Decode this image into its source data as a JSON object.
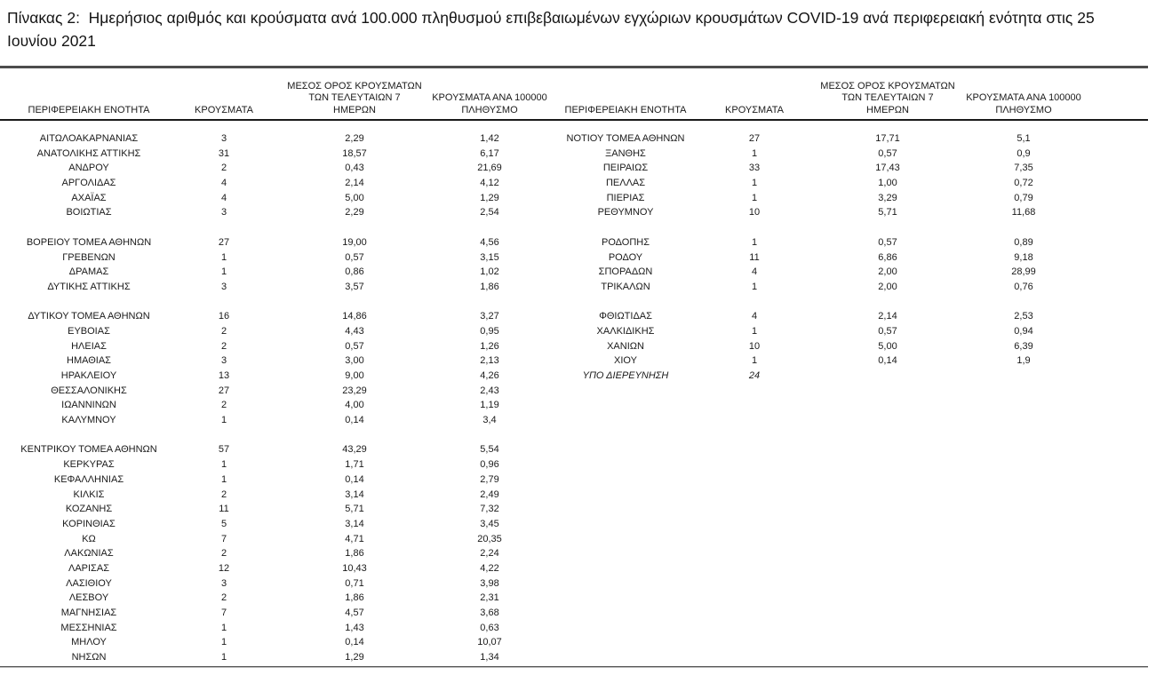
{
  "title": "Πίνακας 2:  Ημερήσιος αριθμός και κρούσματα ανά 100.000 πληθυσμού επιβεβαιωμένων εγχώριων κρουσμάτων COVID-19 ανά περιφερειακή ενότητα στις 25 Ιουνίου 2021",
  "headers": {
    "region": "ΠΕΡΙΦΕΡΕΙΑΚΗ ΕΝΟΤΗΤΑ",
    "cases": "ΚΡΟΥΣΜΑΤΑ",
    "avg7_line1": "ΜΕΣΟΣ ΟΡΟΣ ΚΡΟΥΣΜΑΤΩΝ",
    "avg7_line2": "ΤΩΝ ΤΕΛΕΥΤΑΙΩΝ 7",
    "avg7_line3": "ΗΜΕΡΩΝ",
    "per100k_line1": "ΚΡΟΥΣΜΑΤΑ ΑΝΑ 100000",
    "per100k_line2": "ΠΛΗΘΥΣΜΟ"
  },
  "left_table": {
    "groups": [
      [
        {
          "name": "ΑΙΤΩΛΟΑΚΑΡΝΑΝΙΑΣ",
          "cases": "3",
          "avg7": "2,29",
          "per100k": "1,42"
        },
        {
          "name": "ΑΝΑΤΟΛΙΚΗΣ ΑΤΤΙΚΗΣ",
          "cases": "31",
          "avg7": "18,57",
          "per100k": "6,17"
        },
        {
          "name": "ΑΝΔΡΟΥ",
          "cases": "2",
          "avg7": "0,43",
          "per100k": "21,69"
        },
        {
          "name": "ΑΡΓΟΛΙΔΑΣ",
          "cases": "4",
          "avg7": "2,14",
          "per100k": "4,12"
        },
        {
          "name": "ΑΧΑΪΑΣ",
          "cases": "4",
          "avg7": "5,00",
          "per100k": "1,29"
        },
        {
          "name": "ΒΟΙΩΤΙΑΣ",
          "cases": "3",
          "avg7": "2,29",
          "per100k": "2,54"
        }
      ],
      [
        {
          "name": "ΒΟΡΕΙΟΥ ΤΟΜΕΑ ΑΘΗΝΩΝ",
          "cases": "27",
          "avg7": "19,00",
          "per100k": "4,56"
        },
        {
          "name": "ΓΡΕΒΕΝΩΝ",
          "cases": "1",
          "avg7": "0,57",
          "per100k": "3,15"
        },
        {
          "name": "ΔΡΑΜΑΣ",
          "cases": "1",
          "avg7": "0,86",
          "per100k": "1,02"
        },
        {
          "name": "ΔΥΤΙΚΗΣ ΑΤΤΙΚΗΣ",
          "cases": "3",
          "avg7": "3,57",
          "per100k": "1,86"
        }
      ],
      [
        {
          "name": "ΔΥΤΙΚΟΥ ΤΟΜΕΑ ΑΘΗΝΩΝ",
          "cases": "16",
          "avg7": "14,86",
          "per100k": "3,27"
        },
        {
          "name": "ΕΥΒΟΙΑΣ",
          "cases": "2",
          "avg7": "4,43",
          "per100k": "0,95"
        },
        {
          "name": "ΗΛΕΙΑΣ",
          "cases": "2",
          "avg7": "0,57",
          "per100k": "1,26"
        },
        {
          "name": "ΗΜΑΘΙΑΣ",
          "cases": "3",
          "avg7": "3,00",
          "per100k": "2,13"
        },
        {
          "name": "ΗΡΑΚΛΕΙΟΥ",
          "cases": "13",
          "avg7": "9,00",
          "per100k": "4,26"
        },
        {
          "name": "ΘΕΣΣΑΛΟΝΙΚΗΣ",
          "cases": "27",
          "avg7": "23,29",
          "per100k": "2,43"
        },
        {
          "name": "ΙΩΑΝΝΙΝΩΝ",
          "cases": "2",
          "avg7": "4,00",
          "per100k": "1,19"
        },
        {
          "name": "ΚΑΛΥΜΝΟΥ",
          "cases": "1",
          "avg7": "0,14",
          "per100k": "3,4"
        }
      ],
      [
        {
          "name": "ΚΕΝΤΡΙΚΟΥ ΤΟΜΕΑ ΑΘΗΝΩΝ",
          "cases": "57",
          "avg7": "43,29",
          "per100k": "5,54"
        },
        {
          "name": "ΚΕΡΚΥΡΑΣ",
          "cases": "1",
          "avg7": "1,71",
          "per100k": "0,96"
        },
        {
          "name": "ΚΕΦΑΛΛΗΝΙΑΣ",
          "cases": "1",
          "avg7": "0,14",
          "per100k": "2,79"
        },
        {
          "name": "ΚΙΛΚΙΣ",
          "cases": "2",
          "avg7": "3,14",
          "per100k": "2,49"
        },
        {
          "name": "ΚΟΖΑΝΗΣ",
          "cases": "11",
          "avg7": "5,71",
          "per100k": "7,32"
        },
        {
          "name": "ΚΟΡΙΝΘΙΑΣ",
          "cases": "5",
          "avg7": "3,14",
          "per100k": "3,45"
        },
        {
          "name": "ΚΩ",
          "cases": "7",
          "avg7": "4,71",
          "per100k": "20,35"
        },
        {
          "name": "ΛΑΚΩΝΙΑΣ",
          "cases": "2",
          "avg7": "1,86",
          "per100k": "2,24"
        },
        {
          "name": "ΛΑΡΙΣΑΣ",
          "cases": "12",
          "avg7": "10,43",
          "per100k": "4,22"
        },
        {
          "name": "ΛΑΣΙΘΙΟΥ",
          "cases": "3",
          "avg7": "0,71",
          "per100k": "3,98"
        },
        {
          "name": "ΛΕΣΒΟΥ",
          "cases": "2",
          "avg7": "1,86",
          "per100k": "2,31"
        },
        {
          "name": "ΜΑΓΝΗΣΙΑΣ",
          "cases": "7",
          "avg7": "4,57",
          "per100k": "3,68"
        },
        {
          "name": "ΜΕΣΣΗΝΙΑΣ",
          "cases": "1",
          "avg7": "1,43",
          "per100k": "0,63"
        },
        {
          "name": "ΜΗΛΟΥ",
          "cases": "1",
          "avg7": "0,14",
          "per100k": "10,07"
        },
        {
          "name": "ΝΗΣΩΝ",
          "cases": "1",
          "avg7": "1,29",
          "per100k": "1,34"
        }
      ]
    ]
  },
  "right_table": {
    "groups": [
      [
        {
          "name": "ΝΟΤΙΟΥ ΤΟΜΕΑ ΑΘΗΝΩΝ",
          "cases": "27",
          "avg7": "17,71",
          "per100k": "5,1"
        },
        {
          "name": "ΞΑΝΘΗΣ",
          "cases": "1",
          "avg7": "0,57",
          "per100k": "0,9"
        },
        {
          "name": "ΠΕΙΡΑΙΩΣ",
          "cases": "33",
          "avg7": "17,43",
          "per100k": "7,35"
        },
        {
          "name": "ΠΕΛΛΑΣ",
          "cases": "1",
          "avg7": "1,00",
          "per100k": "0,72"
        },
        {
          "name": "ΠΙΕΡΙΑΣ",
          "cases": "1",
          "avg7": "3,29",
          "per100k": "0,79"
        },
        {
          "name": "ΡΕΘΥΜΝΟΥ",
          "cases": "10",
          "avg7": "5,71",
          "per100k": "11,68"
        }
      ],
      [
        {
          "name": "ΡΟΔΟΠΗΣ",
          "cases": "1",
          "avg7": "0,57",
          "per100k": "0,89"
        },
        {
          "name": "ΡΟΔΟΥ",
          "cases": "11",
          "avg7": "6,86",
          "per100k": "9,18"
        },
        {
          "name": "ΣΠΟΡΑΔΩΝ",
          "cases": "4",
          "avg7": "2,00",
          "per100k": "28,99"
        },
        {
          "name": "ΤΡΙΚΑΛΩΝ",
          "cases": "1",
          "avg7": "2,00",
          "per100k": "0,76"
        }
      ],
      [
        {
          "name": "ΦΘΙΩΤΙΔΑΣ",
          "cases": "4",
          "avg7": "2,14",
          "per100k": "2,53"
        },
        {
          "name": "ΧΑΛΚΙΔΙΚΗΣ",
          "cases": "1",
          "avg7": "0,57",
          "per100k": "0,94"
        },
        {
          "name": "ΧΑΝΙΩΝ",
          "cases": "10",
          "avg7": "5,00",
          "per100k": "6,39"
        },
        {
          "name": "ΧΙΟΥ",
          "cases": "1",
          "avg7": "0,14",
          "per100k": "1,9"
        },
        {
          "name": "ΥΠΟ ΔΙΕΡΕΥΝΗΣΗ",
          "cases": "24",
          "avg7": "",
          "per100k": "",
          "italic": true
        }
      ]
    ]
  }
}
